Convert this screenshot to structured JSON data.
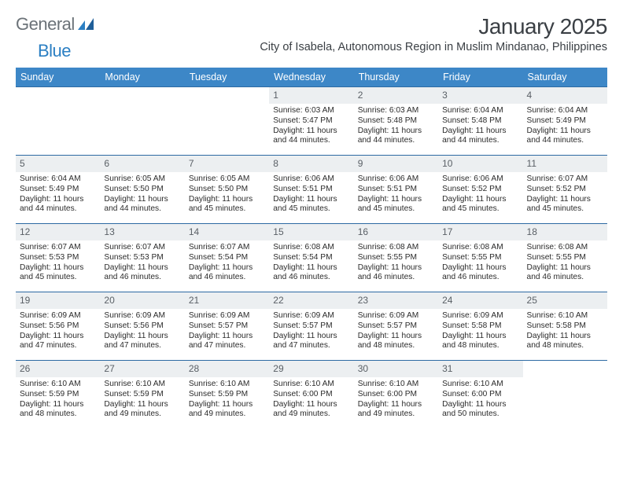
{
  "brand": {
    "part1": "General",
    "part2": "Blue"
  },
  "colors": {
    "header_bg": "#3d87c7",
    "header_text": "#ffffff",
    "week_border": "#2d6aa3",
    "daynum_bg": "#eceff1",
    "daynum_text": "#5a6066",
    "body_text": "#2b2b2b",
    "title_text": "#3a3f44",
    "logo_gray": "#6b7278",
    "logo_blue": "#2b7fc3",
    "page_bg": "#ffffff"
  },
  "title": "January 2025",
  "subtitle": "City of Isabela, Autonomous Region in Muslim Mindanao, Philippines",
  "weekdays": [
    "Sunday",
    "Monday",
    "Tuesday",
    "Wednesday",
    "Thursday",
    "Friday",
    "Saturday"
  ],
  "weeks": [
    [
      {
        "day": "",
        "sunrise": "",
        "sunset": "",
        "dl1": "",
        "dl2": "",
        "empty": true
      },
      {
        "day": "",
        "sunrise": "",
        "sunset": "",
        "dl1": "",
        "dl2": "",
        "empty": true
      },
      {
        "day": "",
        "sunrise": "",
        "sunset": "",
        "dl1": "",
        "dl2": "",
        "empty": true
      },
      {
        "day": "1",
        "sunrise": "Sunrise: 6:03 AM",
        "sunset": "Sunset: 5:47 PM",
        "dl1": "Daylight: 11 hours",
        "dl2": "and 44 minutes."
      },
      {
        "day": "2",
        "sunrise": "Sunrise: 6:03 AM",
        "sunset": "Sunset: 5:48 PM",
        "dl1": "Daylight: 11 hours",
        "dl2": "and 44 minutes."
      },
      {
        "day": "3",
        "sunrise": "Sunrise: 6:04 AM",
        "sunset": "Sunset: 5:48 PM",
        "dl1": "Daylight: 11 hours",
        "dl2": "and 44 minutes."
      },
      {
        "day": "4",
        "sunrise": "Sunrise: 6:04 AM",
        "sunset": "Sunset: 5:49 PM",
        "dl1": "Daylight: 11 hours",
        "dl2": "and 44 minutes."
      }
    ],
    [
      {
        "day": "5",
        "sunrise": "Sunrise: 6:04 AM",
        "sunset": "Sunset: 5:49 PM",
        "dl1": "Daylight: 11 hours",
        "dl2": "and 44 minutes."
      },
      {
        "day": "6",
        "sunrise": "Sunrise: 6:05 AM",
        "sunset": "Sunset: 5:50 PM",
        "dl1": "Daylight: 11 hours",
        "dl2": "and 44 minutes."
      },
      {
        "day": "7",
        "sunrise": "Sunrise: 6:05 AM",
        "sunset": "Sunset: 5:50 PM",
        "dl1": "Daylight: 11 hours",
        "dl2": "and 45 minutes."
      },
      {
        "day": "8",
        "sunrise": "Sunrise: 6:06 AM",
        "sunset": "Sunset: 5:51 PM",
        "dl1": "Daylight: 11 hours",
        "dl2": "and 45 minutes."
      },
      {
        "day": "9",
        "sunrise": "Sunrise: 6:06 AM",
        "sunset": "Sunset: 5:51 PM",
        "dl1": "Daylight: 11 hours",
        "dl2": "and 45 minutes."
      },
      {
        "day": "10",
        "sunrise": "Sunrise: 6:06 AM",
        "sunset": "Sunset: 5:52 PM",
        "dl1": "Daylight: 11 hours",
        "dl2": "and 45 minutes."
      },
      {
        "day": "11",
        "sunrise": "Sunrise: 6:07 AM",
        "sunset": "Sunset: 5:52 PM",
        "dl1": "Daylight: 11 hours",
        "dl2": "and 45 minutes."
      }
    ],
    [
      {
        "day": "12",
        "sunrise": "Sunrise: 6:07 AM",
        "sunset": "Sunset: 5:53 PM",
        "dl1": "Daylight: 11 hours",
        "dl2": "and 45 minutes."
      },
      {
        "day": "13",
        "sunrise": "Sunrise: 6:07 AM",
        "sunset": "Sunset: 5:53 PM",
        "dl1": "Daylight: 11 hours",
        "dl2": "and 46 minutes."
      },
      {
        "day": "14",
        "sunrise": "Sunrise: 6:07 AM",
        "sunset": "Sunset: 5:54 PM",
        "dl1": "Daylight: 11 hours",
        "dl2": "and 46 minutes."
      },
      {
        "day": "15",
        "sunrise": "Sunrise: 6:08 AM",
        "sunset": "Sunset: 5:54 PM",
        "dl1": "Daylight: 11 hours",
        "dl2": "and 46 minutes."
      },
      {
        "day": "16",
        "sunrise": "Sunrise: 6:08 AM",
        "sunset": "Sunset: 5:55 PM",
        "dl1": "Daylight: 11 hours",
        "dl2": "and 46 minutes."
      },
      {
        "day": "17",
        "sunrise": "Sunrise: 6:08 AM",
        "sunset": "Sunset: 5:55 PM",
        "dl1": "Daylight: 11 hours",
        "dl2": "and 46 minutes."
      },
      {
        "day": "18",
        "sunrise": "Sunrise: 6:08 AM",
        "sunset": "Sunset: 5:55 PM",
        "dl1": "Daylight: 11 hours",
        "dl2": "and 46 minutes."
      }
    ],
    [
      {
        "day": "19",
        "sunrise": "Sunrise: 6:09 AM",
        "sunset": "Sunset: 5:56 PM",
        "dl1": "Daylight: 11 hours",
        "dl2": "and 47 minutes."
      },
      {
        "day": "20",
        "sunrise": "Sunrise: 6:09 AM",
        "sunset": "Sunset: 5:56 PM",
        "dl1": "Daylight: 11 hours",
        "dl2": "and 47 minutes."
      },
      {
        "day": "21",
        "sunrise": "Sunrise: 6:09 AM",
        "sunset": "Sunset: 5:57 PM",
        "dl1": "Daylight: 11 hours",
        "dl2": "and 47 minutes."
      },
      {
        "day": "22",
        "sunrise": "Sunrise: 6:09 AM",
        "sunset": "Sunset: 5:57 PM",
        "dl1": "Daylight: 11 hours",
        "dl2": "and 47 minutes."
      },
      {
        "day": "23",
        "sunrise": "Sunrise: 6:09 AM",
        "sunset": "Sunset: 5:57 PM",
        "dl1": "Daylight: 11 hours",
        "dl2": "and 48 minutes."
      },
      {
        "day": "24",
        "sunrise": "Sunrise: 6:09 AM",
        "sunset": "Sunset: 5:58 PM",
        "dl1": "Daylight: 11 hours",
        "dl2": "and 48 minutes."
      },
      {
        "day": "25",
        "sunrise": "Sunrise: 6:10 AM",
        "sunset": "Sunset: 5:58 PM",
        "dl1": "Daylight: 11 hours",
        "dl2": "and 48 minutes."
      }
    ],
    [
      {
        "day": "26",
        "sunrise": "Sunrise: 6:10 AM",
        "sunset": "Sunset: 5:59 PM",
        "dl1": "Daylight: 11 hours",
        "dl2": "and 48 minutes."
      },
      {
        "day": "27",
        "sunrise": "Sunrise: 6:10 AM",
        "sunset": "Sunset: 5:59 PM",
        "dl1": "Daylight: 11 hours",
        "dl2": "and 49 minutes."
      },
      {
        "day": "28",
        "sunrise": "Sunrise: 6:10 AM",
        "sunset": "Sunset: 5:59 PM",
        "dl1": "Daylight: 11 hours",
        "dl2": "and 49 minutes."
      },
      {
        "day": "29",
        "sunrise": "Sunrise: 6:10 AM",
        "sunset": "Sunset: 6:00 PM",
        "dl1": "Daylight: 11 hours",
        "dl2": "and 49 minutes."
      },
      {
        "day": "30",
        "sunrise": "Sunrise: 6:10 AM",
        "sunset": "Sunset: 6:00 PM",
        "dl1": "Daylight: 11 hours",
        "dl2": "and 49 minutes."
      },
      {
        "day": "31",
        "sunrise": "Sunrise: 6:10 AM",
        "sunset": "Sunset: 6:00 PM",
        "dl1": "Daylight: 11 hours",
        "dl2": "and 50 minutes."
      },
      {
        "day": "",
        "sunrise": "",
        "sunset": "",
        "dl1": "",
        "dl2": "",
        "empty": true
      }
    ]
  ]
}
